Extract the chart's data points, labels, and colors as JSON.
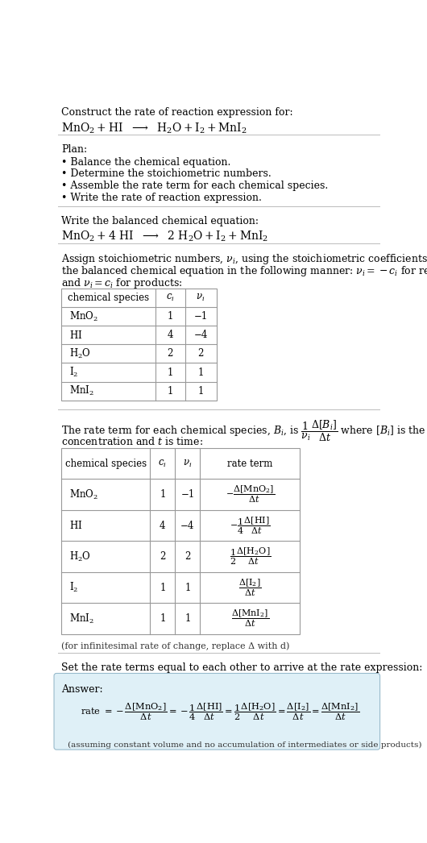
{
  "bg_color": "#ffffff",
  "light_blue_bg": "#dff0f7",
  "table_border_color": "#999999",
  "section_line_color": "#bbbbbb",
  "title_text": "Construct the rate of reaction expression for:",
  "plan_header": "Plan:",
  "plan_items": [
    "• Balance the chemical equation.",
    "• Determine the stoichiometric numbers.",
    "• Assemble the rate term for each chemical species.",
    "• Write the rate of reaction expression."
  ],
  "balanced_header": "Write the balanced chemical equation:",
  "table1_rows": [
    [
      "MnO_2",
      "1",
      "−1"
    ],
    [
      "HI",
      "4",
      "−4"
    ],
    [
      "H_2O",
      "2",
      "2"
    ],
    [
      "I_2",
      "1",
      "1"
    ],
    [
      "MnI_2",
      "1",
      "1"
    ]
  ],
  "infinitesimal_note": "(for infinitesimal rate of change, replace Δ with d)",
  "set_rate_text": "Set the rate terms equal to each other to arrive at the rate expression:",
  "answer_label": "Answer:",
  "assuming_note": "(assuming constant volume and no accumulation of intermediates or side products)"
}
